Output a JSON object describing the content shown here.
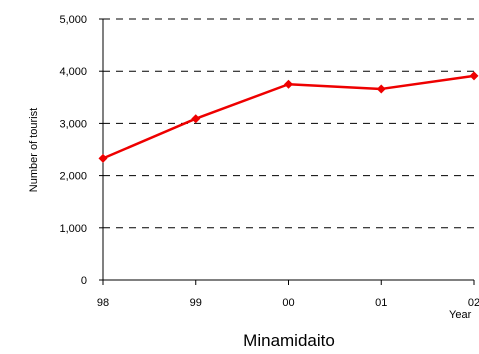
{
  "chart_data": {
    "type": "line",
    "title": "Minamidaito",
    "xlabel": "Year",
    "ylabel": "Number of tourist",
    "categories": [
      "98",
      "99",
      "00",
      "01",
      "02"
    ],
    "series": [
      {
        "values": [
          2330,
          3090,
          3750,
          3660,
          3910
        ]
      }
    ],
    "ylim": [
      0,
      5000
    ],
    "yticks": [
      "0",
      "1,000",
      "2,000",
      "3,000",
      "4,000",
      "5,000"
    ],
    "ytick_values": [
      0,
      1000,
      2000,
      3000,
      4000,
      5000
    ],
    "grid": "dashed-horizontal",
    "line_color": "#ee0000",
    "marker": "diamond"
  }
}
